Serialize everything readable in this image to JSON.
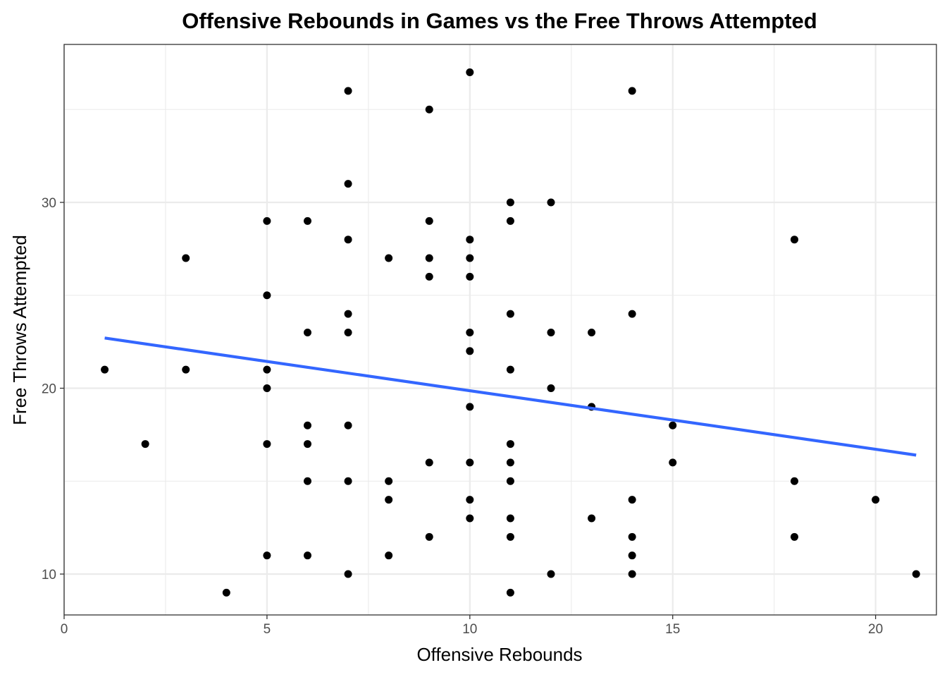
{
  "chart_data": {
    "type": "scatter",
    "title": "Offensive Rebounds in Games vs the Free Throws Attempted",
    "xlabel": "Offensive Rebounds",
    "ylabel": "Free Throws Attempted",
    "xlim": [
      0,
      21.5
    ],
    "ylim": [
      7.8,
      38.5
    ],
    "x_ticks": [
      0,
      5,
      10,
      15,
      20
    ],
    "y_ticks": [
      10,
      20,
      30
    ],
    "x_tick_labels": [
      "0",
      "5",
      "10",
      "15",
      "20"
    ],
    "y_tick_labels": [
      "10",
      "20",
      "30"
    ],
    "grid": true,
    "legend": "none",
    "colors": {
      "points": "#000000",
      "trend_line": "#3366ff",
      "grid": "#ebebeb",
      "panel_border": "#333333"
    },
    "points": [
      {
        "x": 1,
        "y": 21
      },
      {
        "x": 2,
        "y": 17
      },
      {
        "x": 3,
        "y": 27
      },
      {
        "x": 3,
        "y": 21
      },
      {
        "x": 4,
        "y": 9
      },
      {
        "x": 5,
        "y": 29
      },
      {
        "x": 5,
        "y": 25
      },
      {
        "x": 5,
        "y": 21
      },
      {
        "x": 5,
        "y": 20
      },
      {
        "x": 5,
        "y": 17
      },
      {
        "x": 5,
        "y": 11
      },
      {
        "x": 6,
        "y": 29
      },
      {
        "x": 6,
        "y": 23
      },
      {
        "x": 6,
        "y": 18
      },
      {
        "x": 6,
        "y": 17
      },
      {
        "x": 6,
        "y": 15
      },
      {
        "x": 6,
        "y": 11
      },
      {
        "x": 7,
        "y": 36
      },
      {
        "x": 7,
        "y": 31
      },
      {
        "x": 7,
        "y": 28
      },
      {
        "x": 7,
        "y": 24
      },
      {
        "x": 7,
        "y": 23
      },
      {
        "x": 7,
        "y": 18
      },
      {
        "x": 7,
        "y": 15
      },
      {
        "x": 7,
        "y": 10
      },
      {
        "x": 8,
        "y": 27
      },
      {
        "x": 8,
        "y": 15
      },
      {
        "x": 8,
        "y": 14
      },
      {
        "x": 8,
        "y": 11
      },
      {
        "x": 9,
        "y": 35
      },
      {
        "x": 9,
        "y": 29
      },
      {
        "x": 9,
        "y": 27
      },
      {
        "x": 9,
        "y": 26
      },
      {
        "x": 9,
        "y": 16
      },
      {
        "x": 9,
        "y": 12
      },
      {
        "x": 10,
        "y": 37
      },
      {
        "x": 10,
        "y": 28
      },
      {
        "x": 10,
        "y": 27
      },
      {
        "x": 10,
        "y": 26
      },
      {
        "x": 10,
        "y": 23
      },
      {
        "x": 10,
        "y": 22
      },
      {
        "x": 10,
        "y": 19
      },
      {
        "x": 10,
        "y": 16
      },
      {
        "x": 10,
        "y": 14
      },
      {
        "x": 10,
        "y": 13
      },
      {
        "x": 11,
        "y": 30
      },
      {
        "x": 11,
        "y": 29
      },
      {
        "x": 11,
        "y": 24
      },
      {
        "x": 11,
        "y": 21
      },
      {
        "x": 11,
        "y": 17
      },
      {
        "x": 11,
        "y": 16
      },
      {
        "x": 11,
        "y": 15
      },
      {
        "x": 11,
        "y": 13
      },
      {
        "x": 11,
        "y": 12
      },
      {
        "x": 11,
        "y": 9
      },
      {
        "x": 12,
        "y": 30
      },
      {
        "x": 12,
        "y": 23
      },
      {
        "x": 12,
        "y": 20
      },
      {
        "x": 12,
        "y": 10
      },
      {
        "x": 13,
        "y": 23
      },
      {
        "x": 13,
        "y": 19
      },
      {
        "x": 13,
        "y": 13
      },
      {
        "x": 14,
        "y": 36
      },
      {
        "x": 14,
        "y": 24
      },
      {
        "x": 14,
        "y": 14
      },
      {
        "x": 14,
        "y": 12
      },
      {
        "x": 14,
        "y": 11
      },
      {
        "x": 14,
        "y": 10
      },
      {
        "x": 15,
        "y": 18
      },
      {
        "x": 15,
        "y": 16
      },
      {
        "x": 18,
        "y": 28
      },
      {
        "x": 18,
        "y": 15
      },
      {
        "x": 18,
        "y": 12
      },
      {
        "x": 20,
        "y": 14
      },
      {
        "x": 21,
        "y": 10
      }
    ],
    "trend_line": {
      "x": [
        1,
        21
      ],
      "y": [
        22.7,
        16.4
      ]
    }
  }
}
